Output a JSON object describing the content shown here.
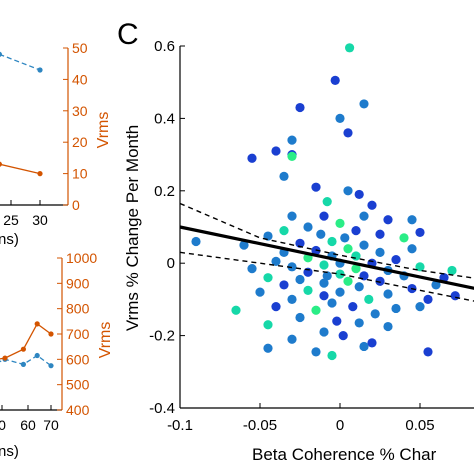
{
  "panel_label": "C",
  "left_fragments": {
    "top_xlabel_fragment": "ns)",
    "top_partial_label": "ns",
    "top_xticks": [
      "25",
      "30"
    ],
    "top_right_yticks": [
      "50",
      "40",
      "30",
      "20",
      "10",
      "0"
    ],
    "top_right_ylabel": "Vrms",
    "bottom_xlabel_fragment": "ns)",
    "bottom_xticks": [
      "0",
      "60",
      "70"
    ],
    "bottom_right_yticks": [
      "1000",
      "900",
      "800",
      "700",
      "600",
      "500",
      "400"
    ],
    "bottom_right_ylabel": "Vrms"
  },
  "colors": {
    "blue_series": "#2e86c1",
    "orange_series": "#d35400",
    "axis_orange": "#d35400",
    "fit_line": "#000000",
    "ci_line": "#000000"
  },
  "chart_data": [
    {
      "type": "scatter",
      "panel": "C",
      "xlabel": "Beta Coherence % Char",
      "ylabel": "Vrms % Change Per Month",
      "xlim": [
        -0.1,
        0.09
      ],
      "ylim": [
        -0.4,
        0.6
      ],
      "xticks": [
        -0.1,
        -0.05,
        0,
        0.05
      ],
      "xtick_labels": [
        "-0.1",
        "-0.05",
        "0",
        "0.05"
      ],
      "yticks": [
        -0.4,
        -0.2,
        0,
        0.2,
        0.4,
        0.6
      ],
      "ytick_labels": [
        "-0.4",
        "-0.2",
        "0",
        "0.2",
        "0.4",
        "0.6"
      ],
      "fit_line": {
        "x": [
          -0.1,
          0.09
        ],
        "y": [
          0.1,
          -0.075
        ]
      },
      "ci_upper": {
        "x": [
          -0.1,
          -0.05,
          0,
          0.05,
          0.09
        ],
        "y": [
          0.165,
          0.07,
          0.022,
          -0.02,
          -0.045
        ]
      },
      "ci_lower": {
        "x": [
          -0.1,
          -0.05,
          0,
          0.05,
          0.09
        ],
        "y": [
          0.03,
          0.0,
          -0.03,
          -0.075,
          -0.11
        ]
      },
      "points": [
        [
          0.006,
          0.595,
          "#16d8a8"
        ],
        [
          -0.003,
          0.505,
          "#1a3fd1"
        ],
        [
          0.015,
          0.44,
          "#1e7bcc"
        ],
        [
          -0.025,
          0.43,
          "#1a3fd1"
        ],
        [
          0.0,
          0.4,
          "#1e7bcc"
        ],
        [
          0.005,
          0.36,
          "#1a3fd1"
        ],
        [
          -0.03,
          0.34,
          "#1e7bcc"
        ],
        [
          -0.03,
          0.3,
          "#1a3fd1"
        ],
        [
          -0.04,
          0.31,
          "#1a3fd1"
        ],
        [
          -0.03,
          0.295,
          "#2aed86"
        ],
        [
          -0.055,
          0.29,
          "#1a3fd1"
        ],
        [
          -0.035,
          0.24,
          "#1e7bcc"
        ],
        [
          -0.015,
          0.21,
          "#1a3fd1"
        ],
        [
          0.005,
          0.2,
          "#1e7bcc"
        ],
        [
          0.012,
          0.19,
          "#1a3fd1"
        ],
        [
          -0.008,
          0.17,
          "#16d8a8"
        ],
        [
          0.02,
          0.16,
          "#1a3fd1"
        ],
        [
          0.015,
          0.13,
          "#1e7bcc"
        ],
        [
          -0.01,
          0.13,
          "#1a3fd1"
        ],
        [
          -0.03,
          0.13,
          "#1e7bcc"
        ],
        [
          0.03,
          0.12,
          "#1a3fd1"
        ],
        [
          0.0,
          0.11,
          "#2aed86"
        ],
        [
          -0.02,
          0.1,
          "#1e7bcc"
        ],
        [
          -0.035,
          0.09,
          "#16d8a8"
        ],
        [
          0.01,
          0.09,
          "#1a3fd1"
        ],
        [
          -0.012,
          0.08,
          "#1e7bcc"
        ],
        [
          0.025,
          0.08,
          "#1a3fd1"
        ],
        [
          -0.045,
          0.075,
          "#1e7bcc"
        ],
        [
          0.003,
          0.07,
          "#1e7bcc"
        ],
        [
          0.04,
          0.07,
          "#2aed86"
        ],
        [
          -0.005,
          0.06,
          "#16d8a8"
        ],
        [
          -0.025,
          0.055,
          "#1a3fd1"
        ],
        [
          0.015,
          0.05,
          "#1e7bcc"
        ],
        [
          -0.06,
          0.05,
          "#1e7bcc"
        ],
        [
          0.045,
          0.04,
          "#1e7bcc"
        ],
        [
          0.005,
          0.04,
          "#2aed86"
        ],
        [
          -0.015,
          0.035,
          "#1a3fd1"
        ],
        [
          0.025,
          0.03,
          "#1e7bcc"
        ],
        [
          -0.035,
          0.03,
          "#1e7bcc"
        ],
        [
          -0.005,
          0.02,
          "#1e7bcc"
        ],
        [
          0.01,
          0.02,
          "#16d8a8"
        ],
        [
          -0.02,
          0.015,
          "#2aed86"
        ],
        [
          0.035,
          0.01,
          "#1a3fd1"
        ],
        [
          -0.04,
          0.005,
          "#1e7bcc"
        ],
        [
          0.0,
          0.0,
          "#1e7bcc"
        ],
        [
          0.02,
          0.0,
          "#1a3fd1"
        ],
        [
          -0.01,
          -0.005,
          "#16d8a8"
        ],
        [
          0.05,
          -0.01,
          "#16d8a8"
        ],
        [
          -0.03,
          -0.01,
          "#1e7bcc"
        ],
        [
          0.01,
          -0.015,
          "#2aed86"
        ],
        [
          -0.055,
          -0.015,
          "#1e7bcc"
        ],
        [
          0.03,
          -0.02,
          "#1e7bcc"
        ],
        [
          -0.02,
          -0.025,
          "#1a3fd1"
        ],
        [
          0.0,
          -0.03,
          "#16d8a8"
        ],
        [
          -0.008,
          -0.035,
          "#1e7bcc"
        ],
        [
          0.015,
          -0.035,
          "#1a3fd1"
        ],
        [
          0.04,
          -0.035,
          "#1e7bcc"
        ],
        [
          -0.045,
          -0.04,
          "#16d8a8"
        ],
        [
          -0.025,
          -0.045,
          "#1e7bcc"
        ],
        [
          0.005,
          -0.05,
          "#2aed86"
        ],
        [
          0.025,
          -0.05,
          "#1a3fd1"
        ],
        [
          -0.01,
          -0.055,
          "#1e7bcc"
        ],
        [
          -0.035,
          -0.06,
          "#1a3fd1"
        ],
        [
          0.012,
          -0.065,
          "#1e7bcc"
        ],
        [
          0.045,
          -0.07,
          "#1a3fd1"
        ],
        [
          -0.02,
          -0.075,
          "#16d8a8"
        ],
        [
          0.0,
          -0.08,
          "#1e7bcc"
        ],
        [
          -0.05,
          -0.08,
          "#1e7bcc"
        ],
        [
          0.03,
          -0.085,
          "#1e7bcc"
        ],
        [
          -0.01,
          -0.09,
          "#1a3fd1"
        ],
        [
          0.018,
          -0.1,
          "#16d8a8"
        ],
        [
          -0.03,
          -0.1,
          "#1e7bcc"
        ],
        [
          0.055,
          -0.1,
          "#1a3fd1"
        ],
        [
          -0.005,
          -0.11,
          "#1e7bcc"
        ],
        [
          0.008,
          -0.12,
          "#1a3fd1"
        ],
        [
          -0.04,
          -0.12,
          "#1a3fd1"
        ],
        [
          0.035,
          -0.125,
          "#1e7bcc"
        ],
        [
          -0.015,
          -0.13,
          "#2aed86"
        ],
        [
          -0.065,
          -0.13,
          "#16d8a8"
        ],
        [
          0.022,
          -0.14,
          "#1e7bcc"
        ],
        [
          -0.025,
          -0.15,
          "#1e7bcc"
        ],
        [
          -0.002,
          -0.16,
          "#1a3fd1"
        ],
        [
          0.012,
          -0.165,
          "#1e7bcc"
        ],
        [
          -0.045,
          -0.17,
          "#16d8a8"
        ],
        [
          0.03,
          -0.175,
          "#1e7bcc"
        ],
        [
          -0.01,
          -0.19,
          "#1e7bcc"
        ],
        [
          0.002,
          -0.2,
          "#1a3fd1"
        ],
        [
          -0.03,
          -0.21,
          "#1e7bcc"
        ],
        [
          0.02,
          -0.22,
          "#1a3fd1"
        ],
        [
          -0.045,
          -0.235,
          "#1e7bcc"
        ],
        [
          0.055,
          -0.245,
          "#1a3fd1"
        ],
        [
          -0.005,
          -0.255,
          "#16d8a8"
        ],
        [
          -0.015,
          -0.245,
          "#1e7bcc"
        ],
        [
          0.015,
          -0.23,
          "#1e7bcc"
        ],
        [
          -0.09,
          0.06,
          "#1e7bcc"
        ],
        [
          0.07,
          -0.02,
          "#16d8a8"
        ],
        [
          0.065,
          -0.04,
          "#1a3fd1"
        ],
        [
          0.06,
          -0.06,
          "#1e7bcc"
        ],
        [
          0.072,
          -0.09,
          "#1a3fd1"
        ],
        [
          0.045,
          0.12,
          "#1e7bcc"
        ],
        [
          0.05,
          0.085,
          "#1a3fd1"
        ],
        [
          0.05,
          -0.12,
          "#1e7bcc"
        ]
      ]
    },
    {
      "type": "line",
      "panel": "top-left",
      "series": [
        {
          "color": "#2e86c1",
          "style": "dashed",
          "x": [
            23,
            30
          ],
          "y": [
            48,
            43
          ]
        },
        {
          "color": "#d35400",
          "style": "solid",
          "x": [
            15,
            23,
            30
          ],
          "y": [
            11,
            13,
            10
          ]
        }
      ]
    },
    {
      "type": "line",
      "panel": "bottom-left",
      "series": [
        {
          "color": "#2e86c1",
          "style": "dashed",
          "x": [
            40,
            50,
            58,
            64,
            70
          ],
          "y": [
            560,
            600,
            580,
            615,
            575
          ]
        },
        {
          "color": "#d35400",
          "style": "solid",
          "x": [
            40,
            50,
            58,
            64,
            70
          ],
          "y": [
            590,
            605,
            640,
            740,
            700
          ]
        }
      ]
    }
  ]
}
